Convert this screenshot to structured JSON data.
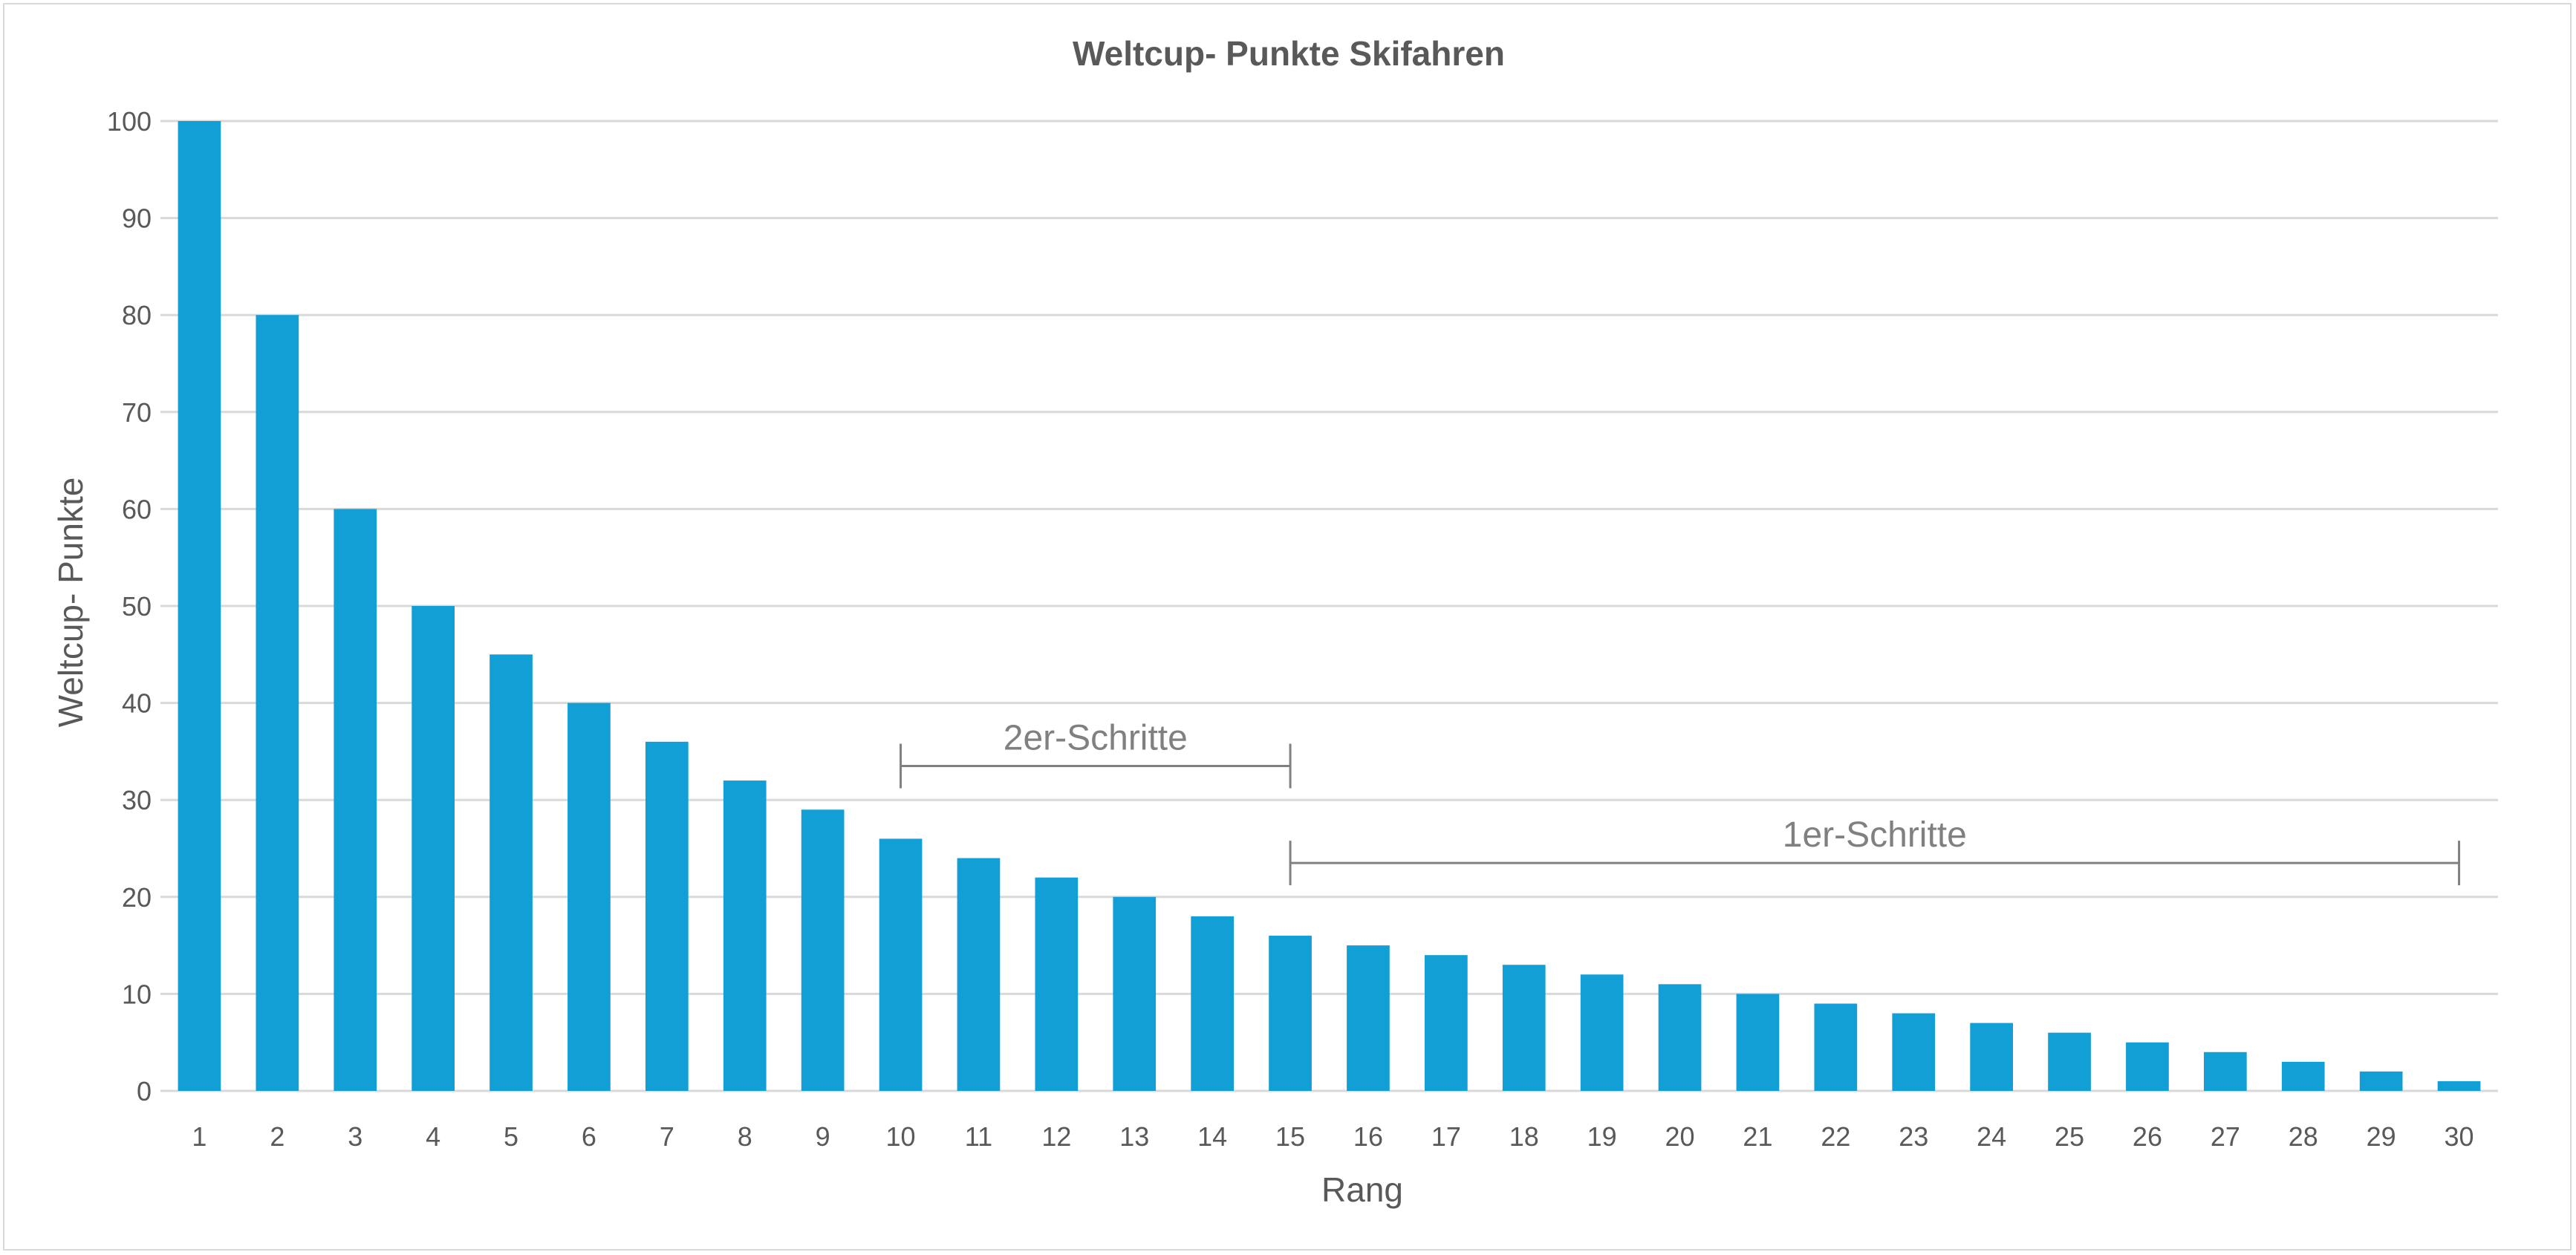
{
  "chart_data": {
    "type": "bar",
    "title": "Weltcup- Punkte Skifahren",
    "xlabel": "Rang",
    "ylabel": "Weltcup- Punkte",
    "categories": [
      "1",
      "2",
      "3",
      "4",
      "5",
      "6",
      "7",
      "8",
      "9",
      "10",
      "11",
      "12",
      "13",
      "14",
      "15",
      "16",
      "17",
      "18",
      "19",
      "20",
      "21",
      "22",
      "23",
      "24",
      "25",
      "26",
      "27",
      "28",
      "29",
      "30"
    ],
    "values": [
      100,
      80,
      60,
      50,
      45,
      40,
      36,
      32,
      29,
      26,
      24,
      22,
      20,
      18,
      16,
      15,
      14,
      13,
      12,
      11,
      10,
      9,
      8,
      7,
      6,
      5,
      4,
      3,
      2,
      1
    ],
    "ylim": [
      0,
      100
    ],
    "yticks": [
      "0",
      "10",
      "20",
      "30",
      "40",
      "50",
      "60",
      "70",
      "80",
      "90",
      "100"
    ],
    "grid": true,
    "legend": "none",
    "bar_color": "#119fd6",
    "annotations": [
      {
        "label": "2er-Schritte",
        "from": "10",
        "to": "15",
        "y": 33.5
      },
      {
        "label": "1er-Schritte",
        "from": "15",
        "to": "30",
        "y": 23.5
      }
    ]
  }
}
